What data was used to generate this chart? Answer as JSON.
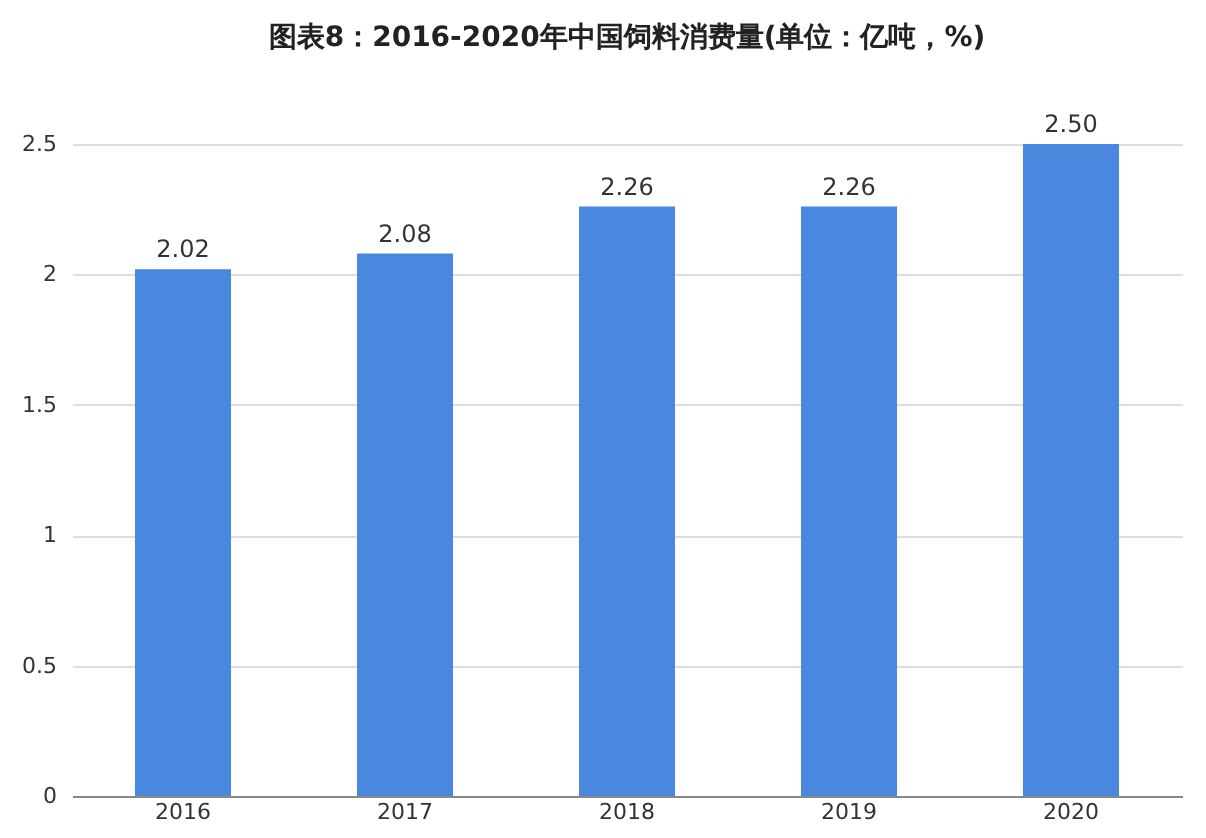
{
  "chart_data": {
    "type": "bar",
    "title": "图表8：2016-2020年中国饲料消费量(单位：亿吨，%)",
    "categories": [
      "2016",
      "2017",
      "2018",
      "2019",
      "2020"
    ],
    "values": [
      2.02,
      2.08,
      2.26,
      2.26,
      2.5
    ],
    "value_labels": [
      "2.02",
      "2.08",
      "2.26",
      "2.26",
      "2.50"
    ],
    "color": "#4a88e0",
    "ylim": [
      0,
      2.5
    ],
    "yticks": [
      0,
      0.5,
      1,
      1.5,
      2,
      2.5
    ],
    "grid": "y"
  }
}
